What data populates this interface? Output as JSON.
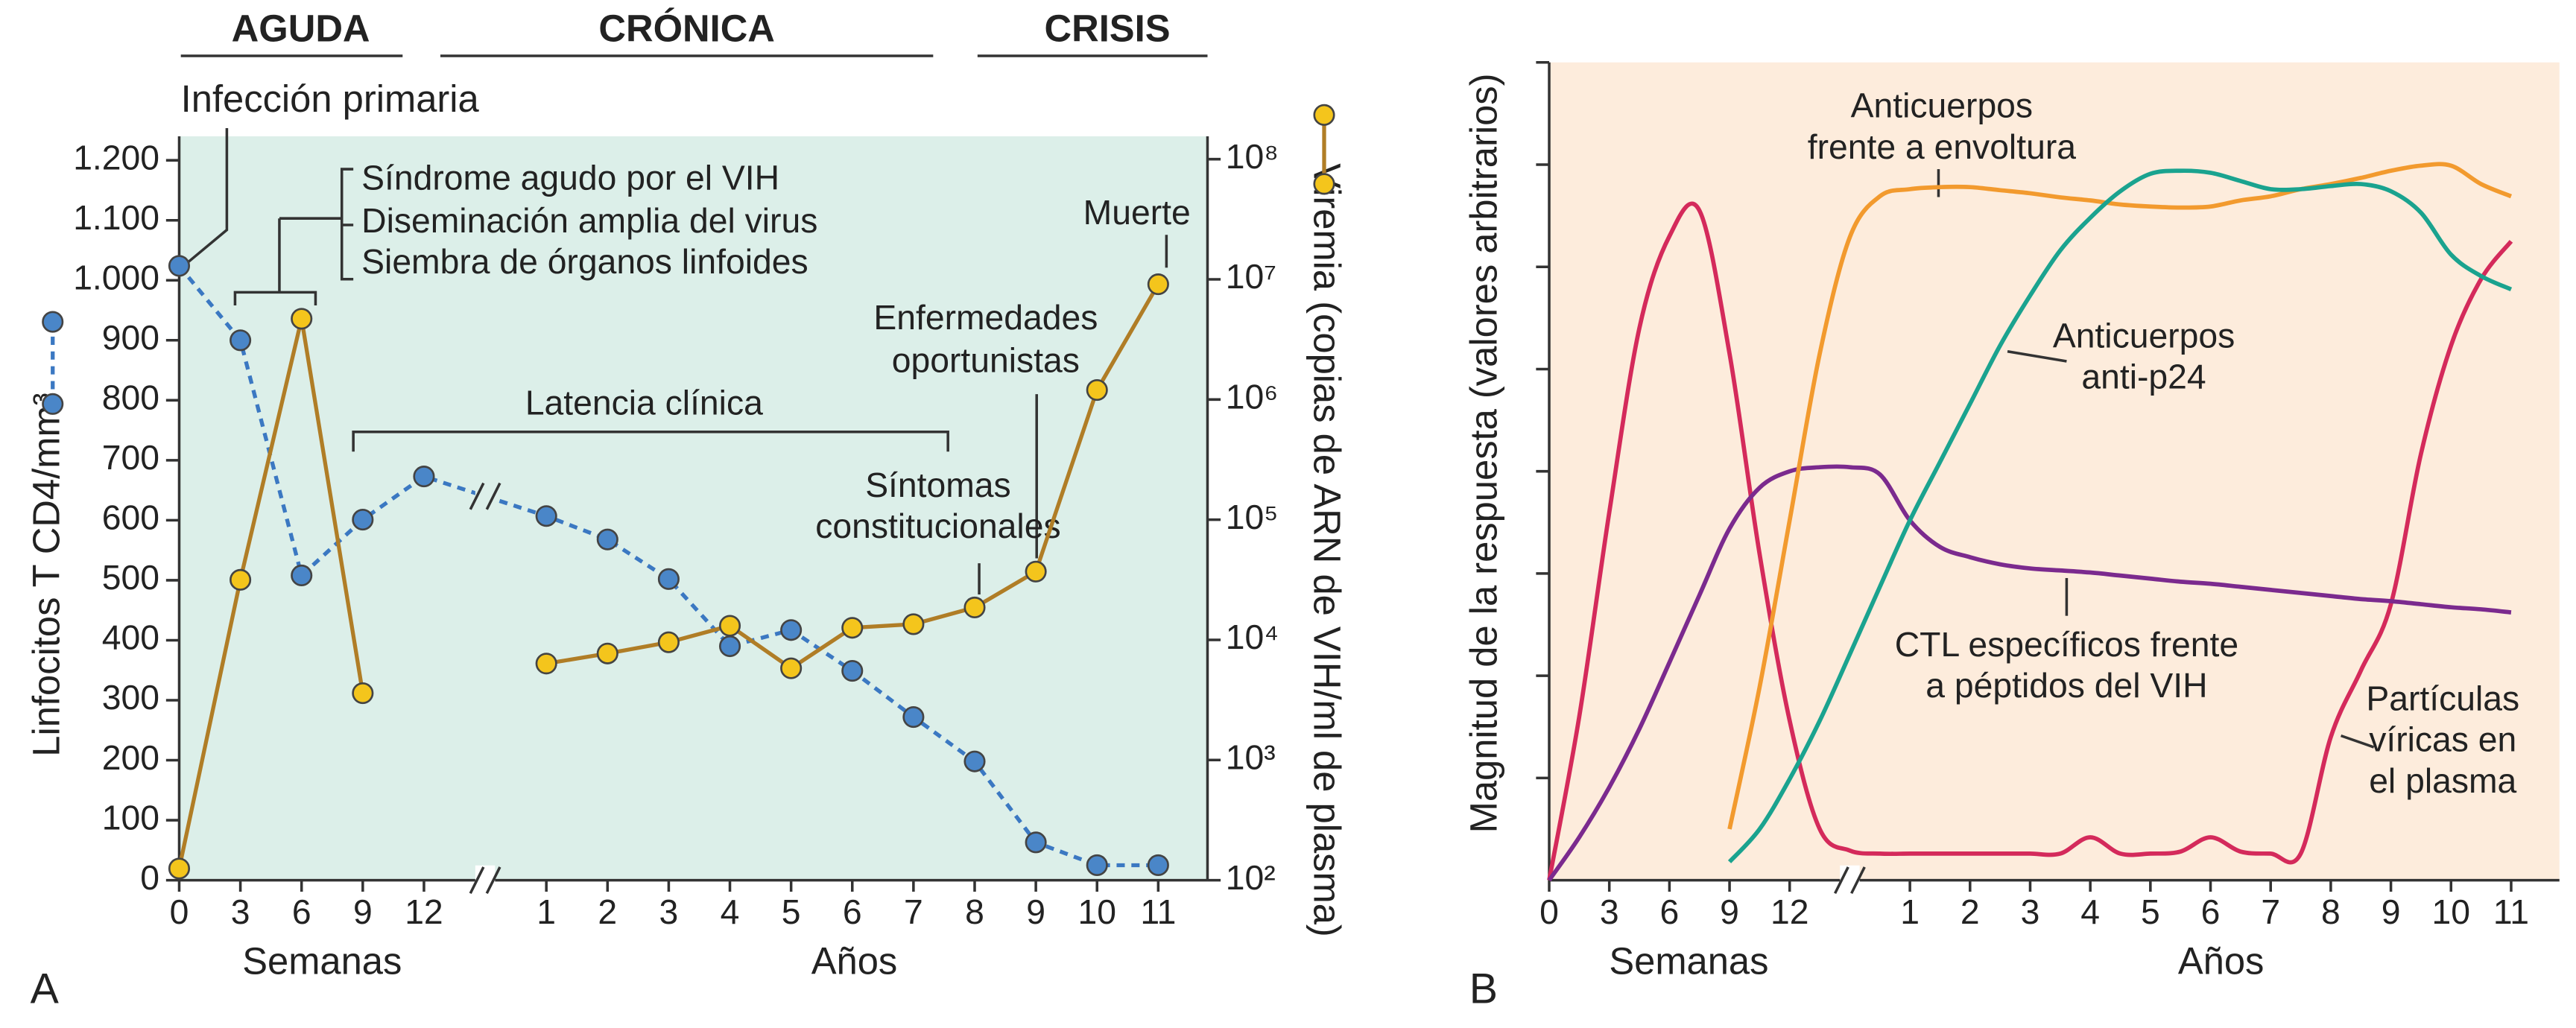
{
  "chart_data": [
    {
      "type": "line",
      "panel_label": "A",
      "phase_labels": [
        "AGUDA",
        "CRÓNICA",
        "CRISIS"
      ],
      "y_label": "Linfocitos T CD4/mm³",
      "y2_label": "Viremia (copias de ARN de VIH/ml de plasma)",
      "x_label_weeks": "Semanas",
      "x_label_years": "Años",
      "background": "#dcefe9",
      "categories": [
        "0",
        "3",
        "6",
        "9",
        "12",
        "1",
        "2",
        "3",
        "4",
        "5",
        "6",
        "7",
        "8",
        "9",
        "10",
        "11"
      ],
      "ylim": [
        0,
        1240
      ],
      "yticks": [
        0,
        100,
        200,
        300,
        400,
        500,
        600,
        700,
        800,
        900,
        {
          "value": 1000,
          "label": "1.000"
        },
        {
          "value": 1100,
          "label": "1.100"
        },
        {
          "value": 1200,
          "label": "1.200"
        }
      ],
      "y2lim": [
        100,
        155000000
      ],
      "y2log": true,
      "y2ticks": [
        {
          "value": 100,
          "label": "10²"
        },
        {
          "value": 1000,
          "label": "10³"
        },
        {
          "value": 10000,
          "label": "10⁴"
        },
        {
          "value": 100000,
          "label": "10⁵"
        },
        {
          "value": 1000000,
          "label": "10⁶"
        },
        {
          "value": 10000000,
          "label": "10⁷"
        },
        {
          "value": 100000000,
          "label": "10⁸"
        }
      ],
      "series": [
        {
          "color": "#3b78c2",
          "marker_color": "#4a86c8",
          "dashed": true,
          "values": [
            1024,
            900,
            508,
            601,
            673,
            607,
            568,
            502,
            390,
            417,
            349,
            272,
            198,
            63,
            25,
            25
          ]
        },
        {
          "axis": "y2",
          "color": "#b07d26",
          "marker_color": "#f4c51c",
          "values": [
            125,
            31600,
            4700000,
            3600,
            null,
            6350,
            7700,
            9550,
            13100,
            5800,
            12600,
            13500,
            18600,
            37000,
            1200000,
            9100000
          ]
        }
      ],
      "annotations": {
        "primary_infection": "Infección primaria",
        "acute_syndrome": [
          "Síndrome agudo por el VIH",
          "Diseminación amplia del virus",
          "Siembra de órganos linfoides"
        ],
        "latency": "Latencia clínica",
        "opportunistic": [
          "Enfermedades",
          "oportunistas"
        ],
        "constitutional": [
          "Síntomas",
          "constitucionales"
        ],
        "death": "Muerte"
      }
    },
    {
      "type": "line",
      "smooth": true,
      "panel_label": "B",
      "y_label": "Magnitud de la respuesta (valores arbitrarios)",
      "x_label_weeks": "Semanas",
      "x_label_years": "Años",
      "background": "#fdecdc",
      "categories": [
        "0",
        null,
        "3",
        null,
        "6",
        null,
        "9",
        null,
        "12",
        null,
        null,
        null,
        "1",
        null,
        "2",
        null,
        "3",
        null,
        "4",
        null,
        "5",
        null,
        "6",
        null,
        "7",
        null,
        "8",
        null,
        "9",
        null,
        "10",
        null,
        "11"
      ],
      "ylim": [
        0,
        8
      ],
      "yticks": [
        1,
        2,
        3,
        4,
        5,
        6,
        7,
        8
      ],
      "ytick_labels": false,
      "series": [
        {
          "color": "#d42a5b",
          "label": [
            "Partículas",
            "víricas en",
            "el plasma"
          ],
          "values": [
            0,
            1.6,
            3.6,
            5.4,
            6.3,
            6.55,
            5.15,
            3.19,
            1.56,
            0.5,
            0.29,
            0.26,
            0.26,
            0.26,
            0.26,
            0.26,
            0.26,
            0.26,
            0.42,
            0.26,
            0.26,
            0.28,
            0.42,
            0.28,
            0.26,
            0.26,
            1.4,
            2.05,
            2.7,
            4.17,
            5.23,
            5.88,
            6.25
          ]
        },
        {
          "color": "#7b2a8e",
          "label": [
            "CTL específicos frente",
            "a péptidos del VIH"
          ],
          "values": [
            0,
            0.42,
            0.91,
            1.48,
            2.13,
            2.79,
            3.44,
            3.84,
            4.0,
            4.04,
            4.04,
            3.97,
            3.52,
            3.26,
            3.16,
            3.09,
            3.05,
            3.03,
            3.01,
            2.98,
            2.95,
            2.92,
            2.9,
            2.87,
            2.84,
            2.81,
            2.78,
            2.75,
            2.73,
            2.7,
            2.67,
            2.65,
            2.62
          ]
        },
        {
          "color": "#f29a2e",
          "label": [
            "Anticuerpos",
            "frente a envoltura"
          ],
          "values": [
            null,
            null,
            null,
            null,
            null,
            null,
            0.5,
            1.89,
            3.52,
            5.15,
            6.29,
            6.69,
            6.76,
            6.78,
            6.78,
            6.75,
            6.72,
            6.68,
            6.65,
            6.61,
            6.59,
            6.58,
            6.59,
            6.65,
            6.69,
            6.76,
            6.81,
            6.87,
            6.94,
            6.99,
            6.99,
            6.81,
            6.69
          ]
        },
        {
          "color": "#1aa38f",
          "label": [
            "Anticuerpos",
            "anti-p24"
          ],
          "values": [
            null,
            null,
            null,
            null,
            null,
            null,
            0.18,
            0.5,
            0.99,
            1.56,
            2.21,
            2.87,
            3.52,
            4.09,
            4.66,
            5.23,
            5.72,
            6.16,
            6.48,
            6.74,
            6.91,
            6.94,
            6.92,
            6.84,
            6.76,
            6.76,
            6.79,
            6.81,
            6.74,
            6.53,
            6.12,
            5.91,
            5.78
          ]
        }
      ]
    }
  ]
}
